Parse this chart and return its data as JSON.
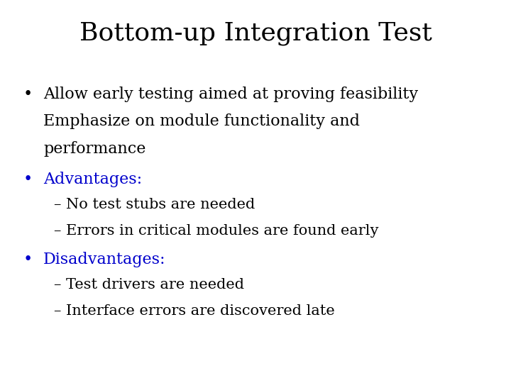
{
  "title": "Bottom-up Integration Test",
  "title_fontsize": 26,
  "title_color": "#000000",
  "title_font": "serif",
  "background_color": "#ffffff",
  "bullet1_line1": "Allow early testing aimed at proving feasibility",
  "bullet1_line2": "Emphasize on module functionality and",
  "bullet1_line3": "performance",
  "bullet1_color": "#000000",
  "bullet2_label": "Advantages:",
  "bullet2_label_color": "#0000cc",
  "bullet2_colon_color": "#000000",
  "advantages": [
    "– No test stubs are needed",
    "– Errors in critical modules are found early"
  ],
  "bullet3_label": "Disadvantages:",
  "bullet3_label_color": "#0000cc",
  "disadvantages": [
    "– Test drivers are needed",
    "– Interface errors are discovered late"
  ],
  "bullet_fontsize": 16,
  "sub_fontsize": 15,
  "bullet_symbol": "•",
  "font": "serif"
}
